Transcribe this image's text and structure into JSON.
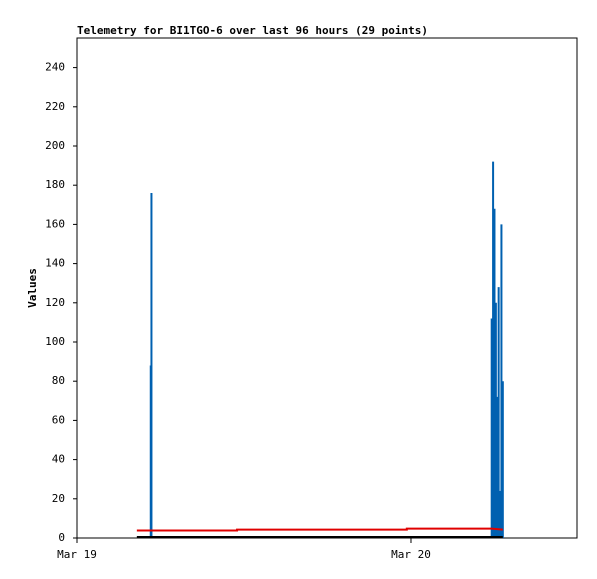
{
  "chart_data": {
    "type": "line",
    "title": "Telemetry for BI1TGO-6 over last 96 hours (29 points)",
    "y_label": "Values",
    "xlim": [
      0,
      35.93
    ],
    "ylim": [
      0,
      255.1
    ],
    "xticks": [
      {
        "value": 0,
        "label": "Mar 19"
      },
      {
        "value": 24,
        "label": "Mar 20"
      }
    ],
    "yticks": [
      0,
      20,
      40,
      60,
      80,
      100,
      120,
      140,
      160,
      180,
      200,
      220,
      240
    ],
    "series": [
      {
        "style": "impulse",
        "color": "#0060b0",
        "x": [
          5.3,
          5.35,
          29.8,
          29.9,
          30.0,
          30.1,
          30.2,
          30.3,
          30.4,
          30.5,
          30.6
        ],
        "values": [
          88,
          176,
          112,
          192,
          168,
          120,
          72,
          128,
          24,
          160,
          80
        ]
      },
      {
        "style": "line",
        "color": "#e00000",
        "x": [
          4.3,
          11.5,
          11.5,
          23.7,
          23.7,
          29.8,
          30.6
        ],
        "values": [
          3.8,
          3.8,
          4.3,
          4.3,
          4.8,
          4.8,
          4.3
        ]
      },
      {
        "style": "line",
        "color": "#000000",
        "x": [
          4.3,
          30.6
        ],
        "values": [
          0.5,
          0.5
        ]
      }
    ]
  }
}
